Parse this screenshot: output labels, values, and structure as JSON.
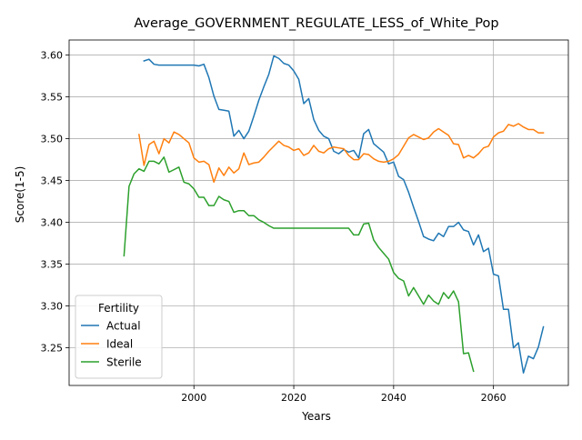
{
  "chart_data": {
    "type": "line",
    "title": "Average_GOVERNMENT_REGULATE_LESS_of_White_Pop",
    "xlabel": "Years",
    "ylabel": "Score(1-5)",
    "xlim": [
      1975,
      2075
    ],
    "ylim": [
      3.205,
      3.618
    ],
    "xticks": [
      2000,
      2020,
      2040,
      2060
    ],
    "yticks": [
      3.25,
      3.3,
      3.35,
      3.4,
      3.45,
      3.5,
      3.55,
      3.6
    ],
    "grid": true,
    "legend": {
      "title": "Fertility",
      "position": "lower-left"
    },
    "series": [
      {
        "name": "Actual",
        "color": "#1f77b4",
        "x": [
          1990,
          1991,
          1992,
          1993,
          1994,
          1995,
          1996,
          1997,
          1998,
          1999,
          2000,
          2001,
          2002,
          2003,
          2004,
          2005,
          2006,
          2007,
          2008,
          2009,
          2010,
          2011,
          2012,
          2013,
          2014,
          2015,
          2016,
          2017,
          2018,
          2019,
          2020,
          2021,
          2022,
          2023,
          2024,
          2025,
          2026,
          2027,
          2028,
          2029,
          2030,
          2031,
          2032,
          2033,
          2034,
          2035,
          2036,
          2037,
          2038,
          2039,
          2040,
          2041,
          2042,
          2043,
          2044,
          2045,
          2046,
          2047,
          2048,
          2049,
          2050,
          2051,
          2052,
          2053,
          2054,
          2055,
          2056,
          2057,
          2058,
          2059,
          2060,
          2061,
          2062,
          2063,
          2064,
          2065,
          2066,
          2067,
          2068,
          2069,
          2070
        ],
        "y": [
          3.593,
          3.595,
          3.589,
          3.588,
          3.588,
          3.588,
          3.588,
          3.588,
          3.588,
          3.588,
          3.588,
          3.587,
          3.589,
          3.573,
          3.551,
          3.535,
          3.534,
          3.533,
          3.503,
          3.51,
          3.5,
          3.509,
          3.527,
          3.546,
          3.562,
          3.577,
          3.599,
          3.596,
          3.59,
          3.588,
          3.581,
          3.571,
          3.542,
          3.548,
          3.523,
          3.51,
          3.503,
          3.5,
          3.485,
          3.482,
          3.487,
          3.484,
          3.486,
          3.477,
          3.506,
          3.511,
          3.494,
          3.489,
          3.484,
          3.47,
          3.472,
          3.455,
          3.451,
          3.436,
          3.418,
          3.401,
          3.383,
          3.38,
          3.378,
          3.387,
          3.383,
          3.395,
          3.395,
          3.4,
          3.391,
          3.389,
          3.373,
          3.385,
          3.365,
          3.369,
          3.338,
          3.336,
          3.296,
          3.296,
          3.25,
          3.256,
          3.22,
          3.24,
          3.237,
          3.251,
          3.275
        ]
      },
      {
        "name": "Ideal",
        "color": "#ff7f0e",
        "x": [
          1989,
          1990,
          1991,
          1992,
          1993,
          1994,
          1995,
          1996,
          1997,
          1998,
          1999,
          2000,
          2001,
          2002,
          2003,
          2004,
          2005,
          2006,
          2007,
          2008,
          2009,
          2010,
          2011,
          2012,
          2013,
          2014,
          2015,
          2016,
          2017,
          2018,
          2019,
          2020,
          2021,
          2022,
          2023,
          2024,
          2025,
          2026,
          2027,
          2028,
          2029,
          2030,
          2031,
          2032,
          2033,
          2034,
          2035,
          2036,
          2037,
          2038,
          2039,
          2040,
          2041,
          2042,
          2043,
          2044,
          2045,
          2046,
          2047,
          2048,
          2049,
          2050,
          2051,
          2052,
          2053,
          2054,
          2055,
          2056,
          2057,
          2058,
          2059,
          2060,
          2061,
          2062,
          2063,
          2064,
          2065,
          2066,
          2067,
          2068,
          2069,
          2070
        ],
        "y": [
          3.505,
          3.468,
          3.493,
          3.497,
          3.482,
          3.5,
          3.495,
          3.508,
          3.505,
          3.5,
          3.495,
          3.477,
          3.472,
          3.473,
          3.469,
          3.448,
          3.465,
          3.456,
          3.466,
          3.459,
          3.464,
          3.483,
          3.469,
          3.471,
          3.472,
          3.478,
          3.485,
          3.491,
          3.497,
          3.492,
          3.49,
          3.486,
          3.488,
          3.48,
          3.483,
          3.492,
          3.485,
          3.483,
          3.488,
          3.49,
          3.489,
          3.488,
          3.48,
          3.475,
          3.475,
          3.482,
          3.481,
          3.476,
          3.473,
          3.472,
          3.473,
          3.476,
          3.481,
          3.491,
          3.501,
          3.505,
          3.502,
          3.499,
          3.501,
          3.508,
          3.512,
          3.508,
          3.504,
          3.494,
          3.493,
          3.477,
          3.48,
          3.477,
          3.482,
          3.489,
          3.491,
          3.502,
          3.507,
          3.509,
          3.517,
          3.515,
          3.518,
          3.514,
          3.511,
          3.511,
          3.507,
          3.507
        ]
      },
      {
        "name": "Sterile",
        "color": "#2ca02c",
        "x": [
          1986,
          1987,
          1988,
          1989,
          1990,
          1991,
          1992,
          1993,
          1994,
          1995,
          1996,
          1997,
          1998,
          1999,
          2000,
          2001,
          2002,
          2003,
          2004,
          2005,
          2006,
          2007,
          2008,
          2009,
          2010,
          2011,
          2012,
          2013,
          2014,
          2015,
          2016,
          2017,
          2018,
          2019,
          2020,
          2021,
          2022,
          2023,
          2024,
          2025,
          2026,
          2027,
          2028,
          2029,
          2030,
          2031,
          2032,
          2033,
          2034,
          2035,
          2036,
          2037,
          2038,
          2039,
          2040,
          2041,
          2042,
          2043,
          2044,
          2045,
          2046,
          2047,
          2048,
          2049,
          2050,
          2051,
          2052,
          2053,
          2054,
          2055,
          2056
        ],
        "y": [
          3.36,
          3.443,
          3.458,
          3.464,
          3.461,
          3.473,
          3.473,
          3.47,
          3.478,
          3.46,
          3.463,
          3.466,
          3.448,
          3.446,
          3.44,
          3.43,
          3.43,
          3.42,
          3.42,
          3.431,
          3.427,
          3.425,
          3.412,
          3.414,
          3.414,
          3.408,
          3.408,
          3.403,
          3.4,
          3.396,
          3.393,
          3.393,
          3.393,
          3.393,
          3.393,
          3.393,
          3.393,
          3.393,
          3.393,
          3.393,
          3.393,
          3.393,
          3.393,
          3.393,
          3.393,
          3.393,
          3.385,
          3.385,
          3.398,
          3.399,
          3.379,
          3.37,
          3.363,
          3.356,
          3.34,
          3.333,
          3.33,
          3.312,
          3.322,
          3.312,
          3.302,
          3.313,
          3.306,
          3.302,
          3.316,
          3.309,
          3.318,
          3.305,
          3.243,
          3.244,
          3.222
        ]
      }
    ]
  }
}
